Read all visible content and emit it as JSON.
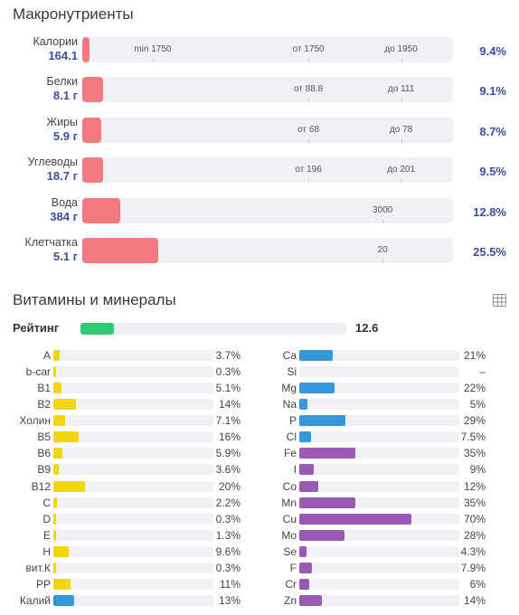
{
  "macro": {
    "title": "Макронутриенты",
    "bar_color": "#f47a7f",
    "rows": [
      {
        "name": "Калории",
        "value": "164.1",
        "pct": "9.4%",
        "fill": 0.018,
        "markers": [
          {
            "label": "min 1750",
            "pos": 0.19
          },
          {
            "label": "от 1750",
            "pos": 0.61
          },
          {
            "label": "до 1950",
            "pos": 0.86
          }
        ]
      },
      {
        "name": "Белки",
        "value": "8.1 г",
        "pct": "9.1%",
        "fill": 0.055,
        "markers": [
          {
            "label": "от 88.8",
            "pos": 0.61
          },
          {
            "label": "до 111",
            "pos": 0.86
          }
        ]
      },
      {
        "name": "Жиры",
        "value": "5.9 г",
        "pct": "8.7%",
        "fill": 0.05,
        "markers": [
          {
            "label": "от 68",
            "pos": 0.61
          },
          {
            "label": "до 78",
            "pos": 0.86
          }
        ]
      },
      {
        "name": "Углеводы",
        "value": "18.7 г",
        "pct": "9.5%",
        "fill": 0.055,
        "markers": [
          {
            "label": "от 196",
            "pos": 0.61
          },
          {
            "label": "до 201",
            "pos": 0.86
          }
        ]
      },
      {
        "name": "Вода",
        "value": "384 г",
        "pct": "12.8%",
        "fill": 0.103,
        "markers": [
          {
            "label": "3000",
            "pos": 0.81
          }
        ]
      },
      {
        "name": "Клетчатка",
        "value": "5.1 г",
        "pct": "25.5%",
        "fill": 0.206,
        "markers": [
          {
            "label": "20",
            "pos": 0.81
          }
        ]
      }
    ]
  },
  "micro": {
    "title": "Витамины и минералы",
    "table_icon": "table-icon",
    "rating": {
      "label": "Рейтинг",
      "value": "12.6",
      "fill": 0.126,
      "color": "#2ecc71"
    },
    "vitamins": [
      {
        "name": "A",
        "pct": "3.7%",
        "fill": 0.037,
        "color": "#f1d50f"
      },
      {
        "name": "b-car",
        "pct": "0.3%",
        "fill": 0.003,
        "color": "#f1d50f"
      },
      {
        "name": "B1",
        "pct": "5.1%",
        "fill": 0.051,
        "color": "#f1d50f"
      },
      {
        "name": "B2",
        "pct": "14%",
        "fill": 0.14,
        "color": "#f1d50f"
      },
      {
        "name": "Холин",
        "pct": "7.1%",
        "fill": 0.071,
        "color": "#f1d50f"
      },
      {
        "name": "B5",
        "pct": "16%",
        "fill": 0.16,
        "color": "#f1d50f"
      },
      {
        "name": "B6",
        "pct": "5.9%",
        "fill": 0.059,
        "color": "#f1d50f"
      },
      {
        "name": "B9",
        "pct": "3.6%",
        "fill": 0.036,
        "color": "#f1d50f"
      },
      {
        "name": "B12",
        "pct": "20%",
        "fill": 0.2,
        "color": "#f1d50f"
      },
      {
        "name": "C",
        "pct": "2.2%",
        "fill": 0.022,
        "color": "#f1d50f"
      },
      {
        "name": "D",
        "pct": "0.3%",
        "fill": 0.003,
        "color": "#f1d50f"
      },
      {
        "name": "E",
        "pct": "1.3%",
        "fill": 0.013,
        "color": "#f1d50f"
      },
      {
        "name": "H",
        "pct": "9.6%",
        "fill": 0.096,
        "color": "#f1d50f"
      },
      {
        "name": "вит.К",
        "pct": "0.3%",
        "fill": 0.003,
        "color": "#f1d50f"
      },
      {
        "name": "PP",
        "pct": "11%",
        "fill": 0.11,
        "color": "#f1d50f"
      },
      {
        "name": "Калий",
        "pct": "13%",
        "fill": 0.13,
        "color": "#3498db"
      }
    ],
    "minerals": [
      {
        "name": "Ca",
        "pct": "21%",
        "fill": 0.21,
        "color": "#3498db"
      },
      {
        "name": "Si",
        "pct": "–",
        "fill": 0,
        "color": "#3498db"
      },
      {
        "name": "Mg",
        "pct": "22%",
        "fill": 0.22,
        "color": "#3498db"
      },
      {
        "name": "Na",
        "pct": "5%",
        "fill": 0.05,
        "color": "#3498db"
      },
      {
        "name": "P",
        "pct": "29%",
        "fill": 0.29,
        "color": "#3498db"
      },
      {
        "name": "Cl",
        "pct": "7.5%",
        "fill": 0.075,
        "color": "#3498db"
      },
      {
        "name": "Fe",
        "pct": "35%",
        "fill": 0.35,
        "color": "#9b59b6"
      },
      {
        "name": "I",
        "pct": "9%",
        "fill": 0.09,
        "color": "#9b59b6"
      },
      {
        "name": "Co",
        "pct": "12%",
        "fill": 0.12,
        "color": "#9b59b6"
      },
      {
        "name": "Mn",
        "pct": "35%",
        "fill": 0.35,
        "color": "#9b59b6"
      },
      {
        "name": "Cu",
        "pct": "70%",
        "fill": 0.7,
        "color": "#9b59b6"
      },
      {
        "name": "Mo",
        "pct": "28%",
        "fill": 0.28,
        "color": "#9b59b6"
      },
      {
        "name": "Se",
        "pct": "4.3%",
        "fill": 0.043,
        "color": "#9b59b6"
      },
      {
        "name": "F",
        "pct": "7.9%",
        "fill": 0.079,
        "color": "#9b59b6"
      },
      {
        "name": "Cr",
        "pct": "6%",
        "fill": 0.06,
        "color": "#9b59b6"
      },
      {
        "name": "Zn",
        "pct": "14%",
        "fill": 0.14,
        "color": "#9b59b6"
      }
    ]
  }
}
